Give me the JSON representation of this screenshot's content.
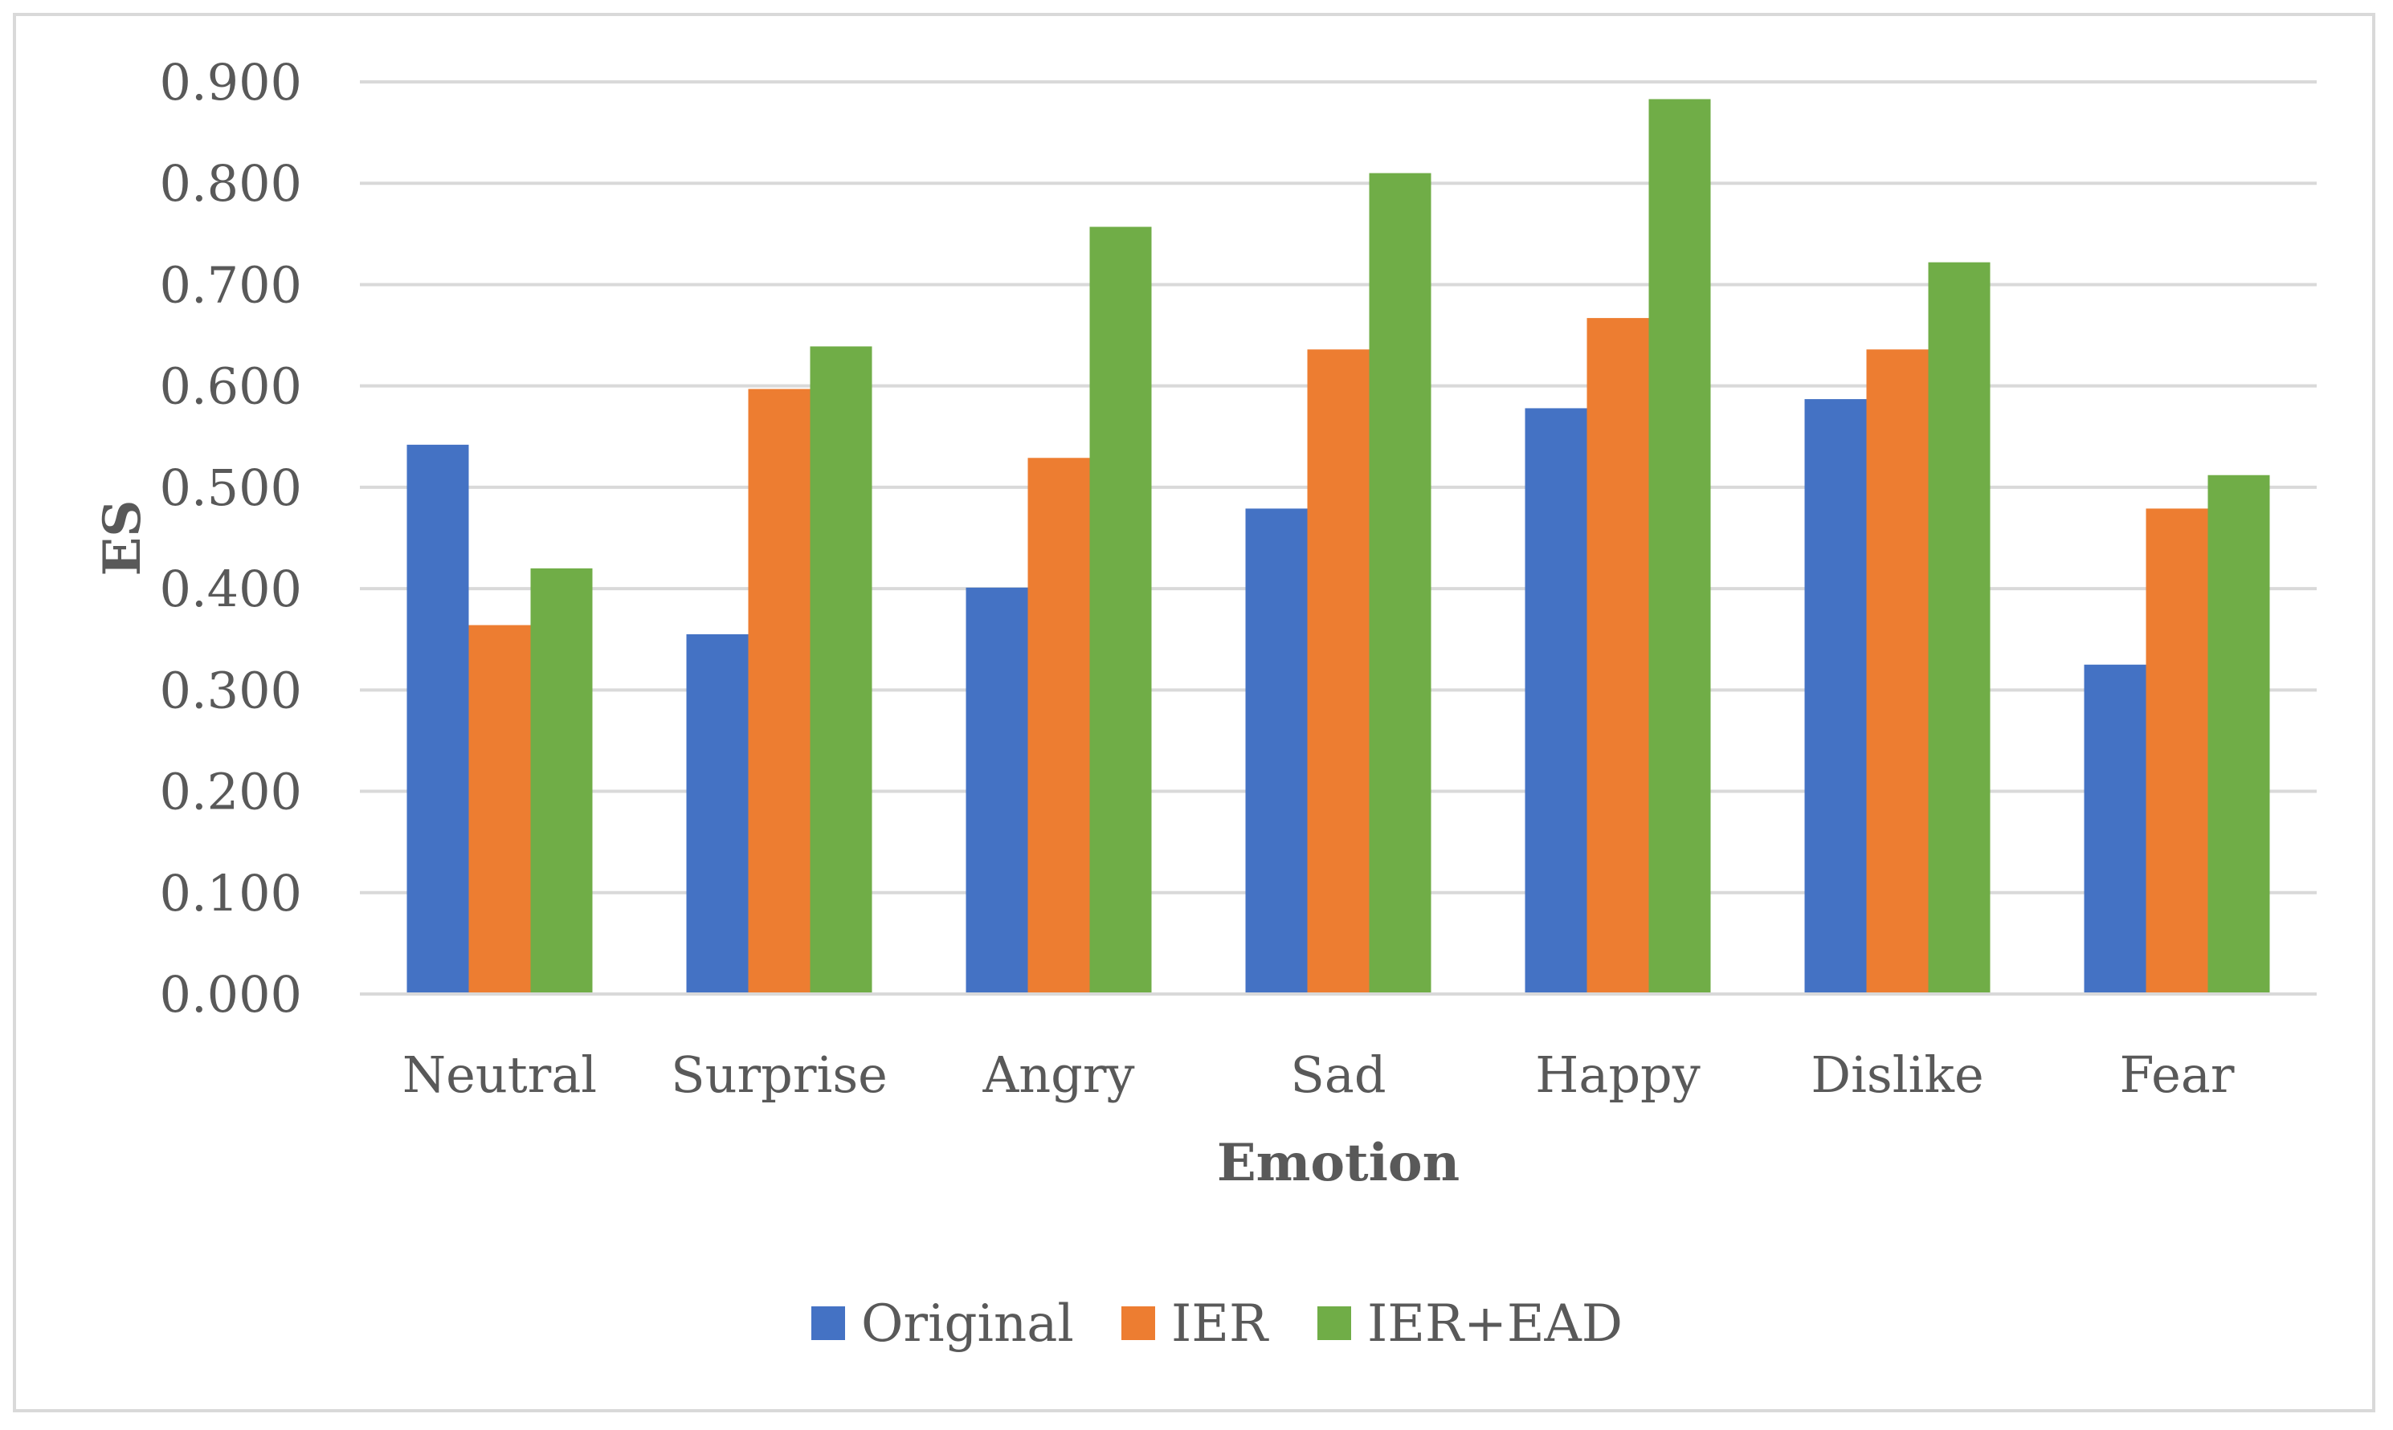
{
  "chart_data": {
    "type": "bar",
    "title": "",
    "xlabel": "Emotion",
    "ylabel": "ES",
    "ylim": [
      0,
      0.9
    ],
    "ytick_step": 0.1,
    "ytick_labels": [
      "0.000",
      "0.100",
      "0.200",
      "0.300",
      "0.400",
      "0.500",
      "0.600",
      "0.700",
      "0.800",
      "0.900"
    ],
    "grid": true,
    "legend_position": "bottom",
    "categories": [
      "Neutral",
      "Surprise",
      "Angry",
      "Sad",
      "Happy",
      "Dislike",
      "Fear"
    ],
    "series": [
      {
        "name": "Original",
        "color": "#4472c4",
        "values": [
          0.542,
          0.355,
          0.401,
          0.479,
          0.578,
          0.587,
          0.325
        ]
      },
      {
        "name": "IER",
        "color": "#ed7d31",
        "values": [
          0.364,
          0.597,
          0.529,
          0.636,
          0.667,
          0.636,
          0.479
        ]
      },
      {
        "name": "IER+EAD",
        "color": "#70ad47",
        "values": [
          0.42,
          0.639,
          0.757,
          0.81,
          0.883,
          0.722,
          0.512
        ]
      }
    ]
  }
}
